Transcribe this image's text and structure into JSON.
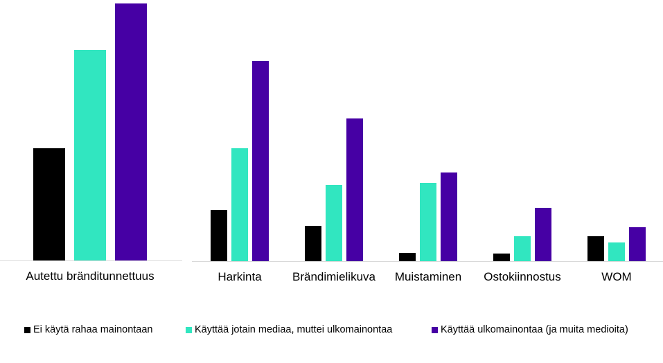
{
  "colors": {
    "series0": "#000000",
    "series1": "#31e6c0",
    "series2": "#4600a4",
    "baseline": "#d9d9d9"
  },
  "legend": [
    {
      "label": "Ei käytä rahaa mainontaan",
      "color": "#000000"
    },
    {
      "label": "Käyttää jotain mediaa, muttei ulkomainontaa",
      "color": "#31e6c0"
    },
    {
      "label": "Käyttää ulkomainontaa (ja muita medioita)",
      "color": "#4600a4"
    }
  ],
  "chart_data": [
    {
      "type": "bar",
      "title": "",
      "xlabel": "",
      "ylabel": "",
      "note": "No y-axis or data labels shown; values are relative bar heights in pixels above baseline",
      "grid": false,
      "legend_position": "bottom",
      "categories": [
        "Autettu bränditunnettuus"
      ],
      "series": [
        {
          "name": "Ei käytä rahaa mainontaan",
          "values": [
            162
          ]
        },
        {
          "name": "Käyttää jotain mediaa, muttei ulkomainontaa",
          "values": [
            304
          ]
        },
        {
          "name": "Käyttää ulkomainontaa (ja muita medioita)",
          "values": [
            371
          ]
        }
      ]
    },
    {
      "type": "bar",
      "title": "",
      "xlabel": "",
      "ylabel": "",
      "note": "No y-axis or data labels shown; values are relative bar heights in pixels above baseline",
      "grid": false,
      "legend_position": "bottom",
      "categories": [
        "Harkinta",
        "Brändimielikuva",
        "Muistaminen",
        "Ostokiinnostus",
        "WOM"
      ],
      "series": [
        {
          "name": "Ei käytä rahaa mainontaan",
          "values": [
            74,
            51,
            12,
            11,
            36
          ]
        },
        {
          "name": "Käyttää jotain mediaa, muttei ulkomainontaa",
          "values": [
            163,
            110,
            113,
            36,
            27
          ]
        },
        {
          "name": "Käyttää ulkomainontaa (ja muita medioita)",
          "values": [
            289,
            206,
            128,
            77,
            49
          ]
        }
      ]
    }
  ]
}
